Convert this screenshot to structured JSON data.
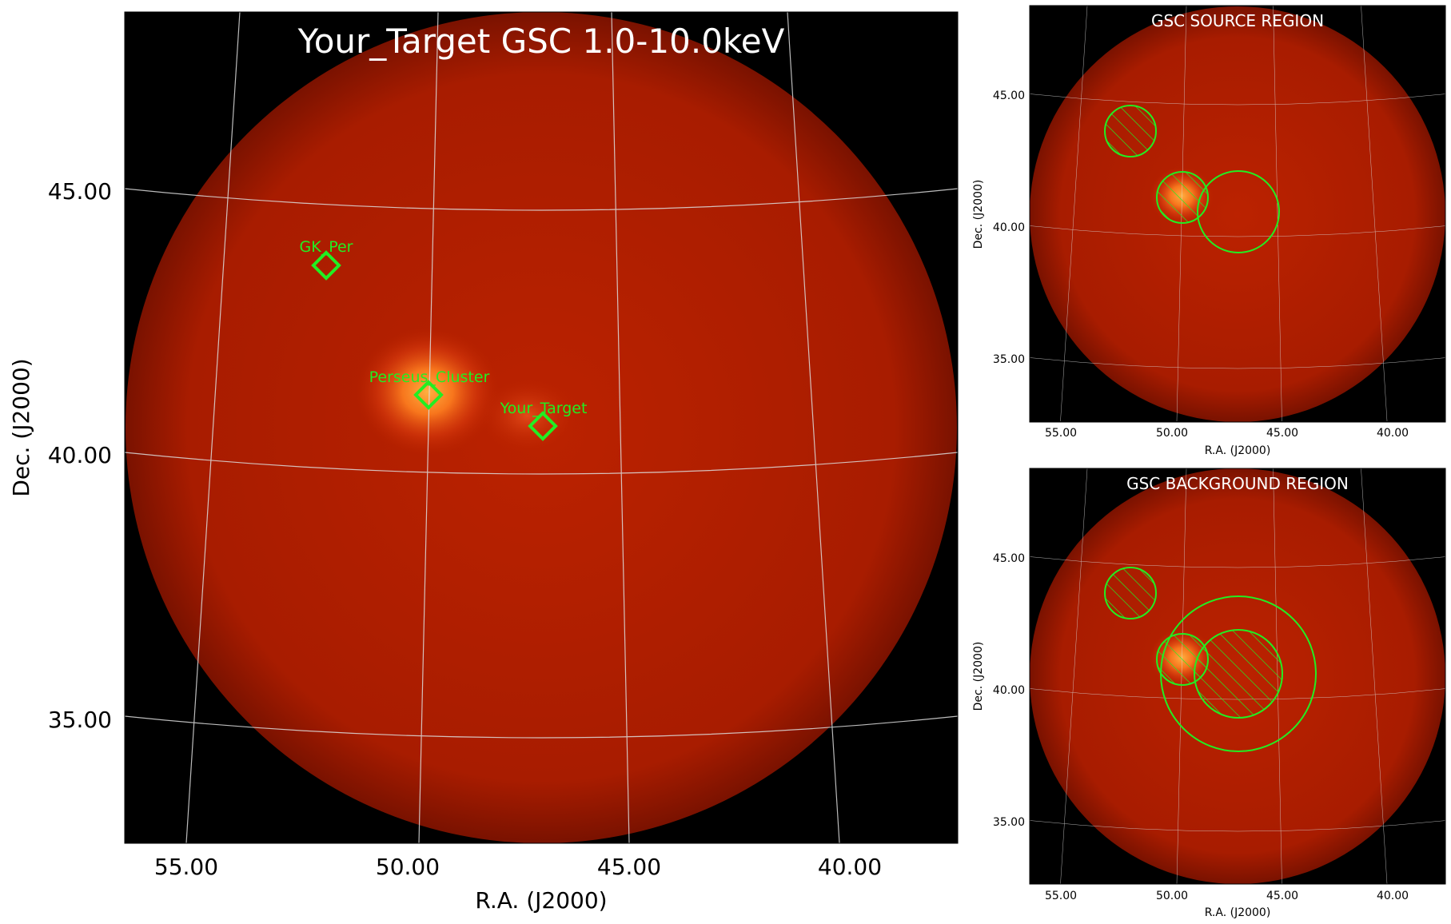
{
  "main": {
    "title": "Your_Target GSC 1.0-10.0keV",
    "xlabel": "R.A. (J2000)",
    "ylabel": "Dec. (J2000)",
    "xticks": [
      "55.00",
      "50.00",
      "45.00",
      "40.00"
    ],
    "yticks": [
      "45.00",
      "40.00",
      "35.00"
    ],
    "sources": [
      {
        "name": "GK_Per"
      },
      {
        "name": "Perseus_Cluster"
      },
      {
        "name": "Your_Target"
      }
    ]
  },
  "source_panel": {
    "title": "GSC SOURCE REGION",
    "xlabel": "R.A. (J2000)",
    "ylabel": "Dec. (J2000)",
    "xticks": [
      "55.00",
      "50.00",
      "45.00",
      "40.00"
    ],
    "yticks": [
      "45.00",
      "40.00",
      "35.00"
    ]
  },
  "background_panel": {
    "title": "GSC BACKGROUND REGION",
    "xlabel": "R.A. (J2000)",
    "ylabel": "Dec. (J2000)",
    "xticks": [
      "55.00",
      "50.00",
      "45.00",
      "40.00"
    ],
    "yticks": [
      "45.00",
      "40.00",
      "35.00"
    ]
  },
  "colors": {
    "disk": "#b01e00",
    "hot": "#ff9a20",
    "region": "#22ee22",
    "grid": "#e0e0e0",
    "background": "#000000"
  }
}
